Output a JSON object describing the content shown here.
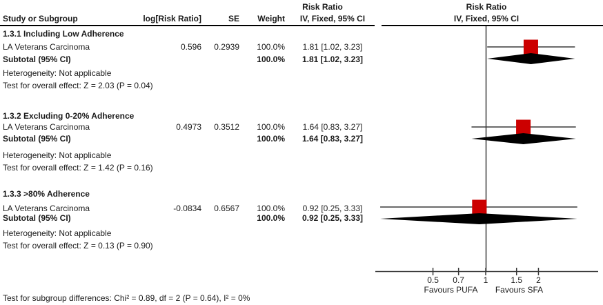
{
  "header": {
    "col_study": "Study or Subgroup",
    "col_log_rr": "log[Risk Ratio]",
    "col_se": "SE",
    "col_weight": "Weight",
    "effect_title": "Risk Ratio",
    "effect_subtitle": "IV, Fixed, 95% CI",
    "plot_title": "Risk Ratio",
    "plot_subtitle": "IV, Fixed, 95% CI"
  },
  "colors": {
    "marker": "#CC0000",
    "diamond": "#000000",
    "plot_line": "#383838",
    "rule": "#000000"
  },
  "chart_data": {
    "type": "forest",
    "x_scale": "log",
    "x_ticks": [
      0.5,
      0.7,
      1,
      1.5,
      2
    ],
    "x_axis_labels": {
      "left": "Favours PUFA",
      "right": "Favours SFA"
    },
    "reference_line": 1,
    "groups": [
      {
        "heading": "1.3.1 Including Low Adherence",
        "study": {
          "name": "LA Veterans Carcinoma",
          "log_rr": "0.596",
          "se": "0.2939",
          "weight": "100.0%",
          "rr_ci_text": "1.81 [1.02, 3.23]",
          "rr": 1.81,
          "ci_low": 1.02,
          "ci_high": 3.23
        },
        "subtotal": {
          "label": "Subtotal (95% CI)",
          "weight": "100.0%",
          "rr_ci_text": "1.81 [1.02, 3.23]",
          "rr": 1.81,
          "ci_low": 1.02,
          "ci_high": 3.23
        },
        "heterogeneity": "Heterogeneity: Not applicable",
        "overall_test": "Test for overall effect: Z = 2.03 (P = 0.04)"
      },
      {
        "heading": "1.3.2 Excluding 0-20% Adherence",
        "study": {
          "name": "LA Veterans Carcinoma",
          "log_rr": "0.4973",
          "se": "0.3512",
          "weight": "100.0%",
          "rr_ci_text": "1.64 [0.83, 3.27]",
          "rr": 1.64,
          "ci_low": 0.83,
          "ci_high": 3.27
        },
        "subtotal": {
          "label": "Subtotal (95% CI)",
          "weight": "100.0%",
          "rr_ci_text": "1.64 [0.83, 3.27]",
          "rr": 1.64,
          "ci_low": 0.83,
          "ci_high": 3.27
        },
        "heterogeneity": "Heterogeneity: Not applicable",
        "overall_test": "Test for overall effect: Z = 1.42 (P = 0.16)"
      },
      {
        "heading": "1.3.3 >80% Adherence",
        "study": {
          "name": "LA Veterans Carcinoma",
          "log_rr": "-0.0834",
          "se": "0.6567",
          "weight": "100.0%",
          "rr_ci_text": "0.92 [0.25, 3.33]",
          "rr": 0.92,
          "ci_low": 0.25,
          "ci_high": 3.33
        },
        "subtotal": {
          "label": "Subtotal (95% CI)",
          "weight": "100.0%",
          "rr_ci_text": "0.92 [0.25, 3.33]",
          "rr": 0.92,
          "ci_low": 0.25,
          "ci_high": 3.33
        },
        "heterogeneity": "Heterogeneity: Not applicable",
        "overall_test": "Test for overall effect: Z = 0.13 (P = 0.90)"
      }
    ],
    "footer": "Test for subgroup differences: Chi² = 0.89, df = 2 (P = 0.64), I² = 0%"
  }
}
